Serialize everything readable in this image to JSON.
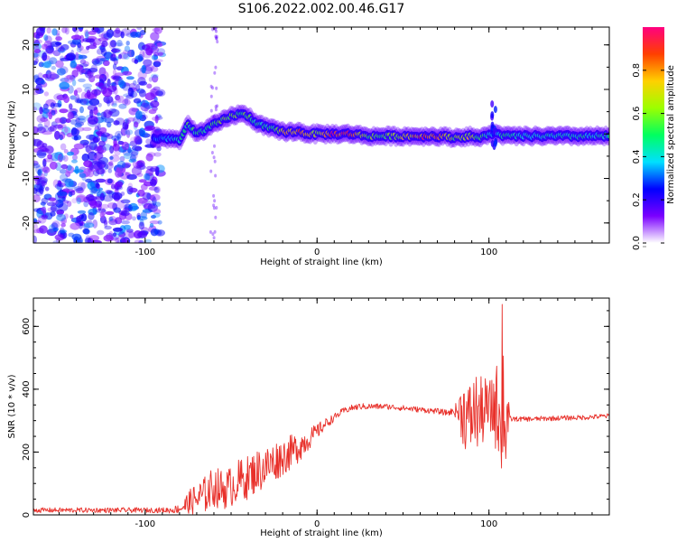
{
  "title": "S106.2022.002.00.46.G17",
  "chart_data": [
    {
      "type": "heatmap",
      "xlabel": "Height of straight line (km)",
      "ylabel": "Frequency (Hz)",
      "xlim": [
        -165,
        170
      ],
      "ylim": [
        -24.5,
        24
      ],
      "xticks": [
        -100,
        0,
        100
      ],
      "yticks": [
        -20,
        -10,
        0,
        10,
        20
      ],
      "colorbar": {
        "label": "Normalized spectral amplitude",
        "range": [
          0,
          1
        ],
        "ticks": [
          "0.0",
          "0.2",
          "0.4",
          "0.6",
          "0.8"
        ],
        "colormap": [
          "#ffffff",
          "#7a00ff",
          "#0000ff",
          "#00e0ff",
          "#00ff60",
          "#9cff00",
          "#ffd000",
          "#ff4000",
          "#ff0080"
        ]
      },
      "ridge": {
        "x": [
          -95,
          -85,
          -80,
          -75,
          -70,
          -65,
          -60,
          -55,
          -50,
          -45,
          -40,
          -35,
          -30,
          -25,
          -20,
          -15,
          -10,
          -5,
          0,
          10,
          20,
          30,
          40,
          50,
          60,
          70,
          80,
          90,
          95,
          100,
          105,
          110,
          120,
          140,
          160,
          170
        ],
        "y": [
          -1,
          -1,
          -1.5,
          2,
          0,
          1,
          2,
          3,
          4,
          4.5,
          4,
          2.5,
          1.5,
          1,
          0.5,
          0.5,
          0.5,
          0,
          0,
          0,
          0,
          -0.5,
          -0.5,
          -0.5,
          -0.5,
          -0.5,
          -0.8,
          -0.5,
          -1,
          0,
          0,
          -0.5,
          -0.5,
          -0.5,
          -0.5,
          -0.5
        ],
        "intensity": [
          0.3,
          0.4,
          0.45,
          0.55,
          0.5,
          0.5,
          0.55,
          0.6,
          0.6,
          0.55,
          0.55,
          0.5,
          0.5,
          0.5,
          0.75,
          0.8,
          0.8,
          0.75,
          0.6,
          0.9,
          0.85,
          0.6,
          0.55,
          0.7,
          0.85,
          0.9,
          0.6,
          0.7,
          0.5,
          0.45,
          0.45,
          0.5,
          0.45,
          0.45,
          0.45,
          0.45
        ]
      },
      "grid": false
    },
    {
      "type": "line",
      "xlabel": "Height of straight line (km)",
      "ylabel": "SNR (10 * v/v)",
      "xlim": [
        -165,
        170
      ],
      "ylim": [
        0,
        690
      ],
      "xticks": [
        -100,
        0,
        100
      ],
      "yticks": [
        0,
        200,
        400,
        600
      ],
      "series": [
        {
          "color": "#e8302a",
          "x": [
            -165,
            -150,
            -130,
            -110,
            -95,
            -85,
            -80,
            -75,
            -70,
            -65,
            -60,
            -55,
            -50,
            -45,
            -40,
            -35,
            -30,
            -25,
            -20,
            -15,
            -10,
            -5,
            0,
            5,
            10,
            15,
            20,
            25,
            30,
            40,
            50,
            60,
            70,
            75,
            80,
            85,
            88,
            92,
            95,
            98,
            100,
            103,
            106,
            108,
            110,
            112,
            115,
            125,
            140,
            155,
            170
          ],
          "y": [
            15,
            15,
            15,
            15,
            15,
            15,
            20,
            35,
            50,
            65,
            90,
            80,
            90,
            110,
            120,
            140,
            150,
            170,
            185,
            200,
            220,
            240,
            265,
            290,
            310,
            330,
            340,
            345,
            345,
            345,
            340,
            335,
            330,
            325,
            330,
            330,
            300,
            330,
            320,
            340,
            330,
            350,
            330,
            360,
            310,
            305,
            305,
            305,
            308,
            310,
            315
          ],
          "noise": [
            8,
            8,
            8,
            8,
            8,
            10,
            15,
            40,
            55,
            60,
            65,
            65,
            65,
            70,
            70,
            70,
            70,
            65,
            60,
            55,
            50,
            35,
            25,
            18,
            12,
            10,
            10,
            10,
            10,
            9,
            9,
            9,
            9,
            10,
            12,
            110,
            120,
            130,
            120,
            100,
            90,
            130,
            160,
            250,
            200,
            10,
            8,
            8,
            8,
            8,
            8
          ]
        }
      ],
      "grid": false
    }
  ]
}
